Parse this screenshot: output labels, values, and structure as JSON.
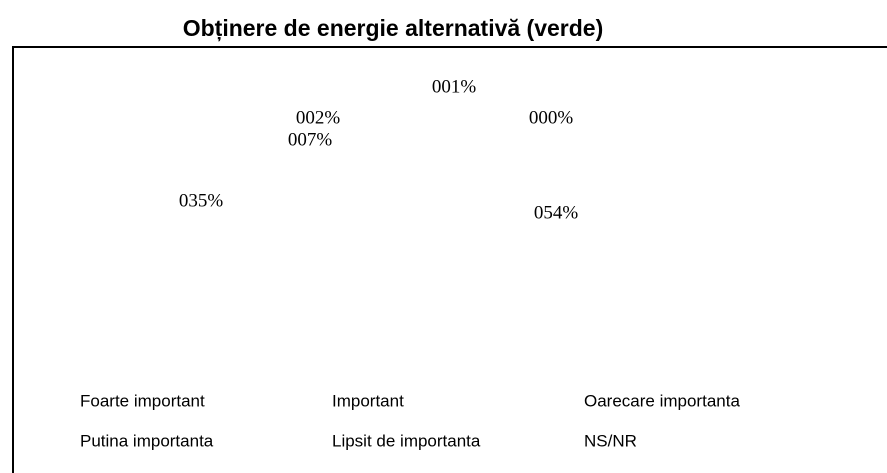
{
  "chart_data": {
    "type": "pie",
    "title": "Obținere de energie alternativă (verde)",
    "categories": [
      "Foarte important",
      "Important",
      "Oarecare importanta",
      "Putina importanta",
      "Lipsit de importanta",
      "NS/NR"
    ],
    "values": [
      35,
      54,
      7,
      2,
      1,
      0
    ],
    "value_labels": [
      "035%",
      "054%",
      "007%",
      "002%",
      "001%",
      "000%"
    ]
  }
}
